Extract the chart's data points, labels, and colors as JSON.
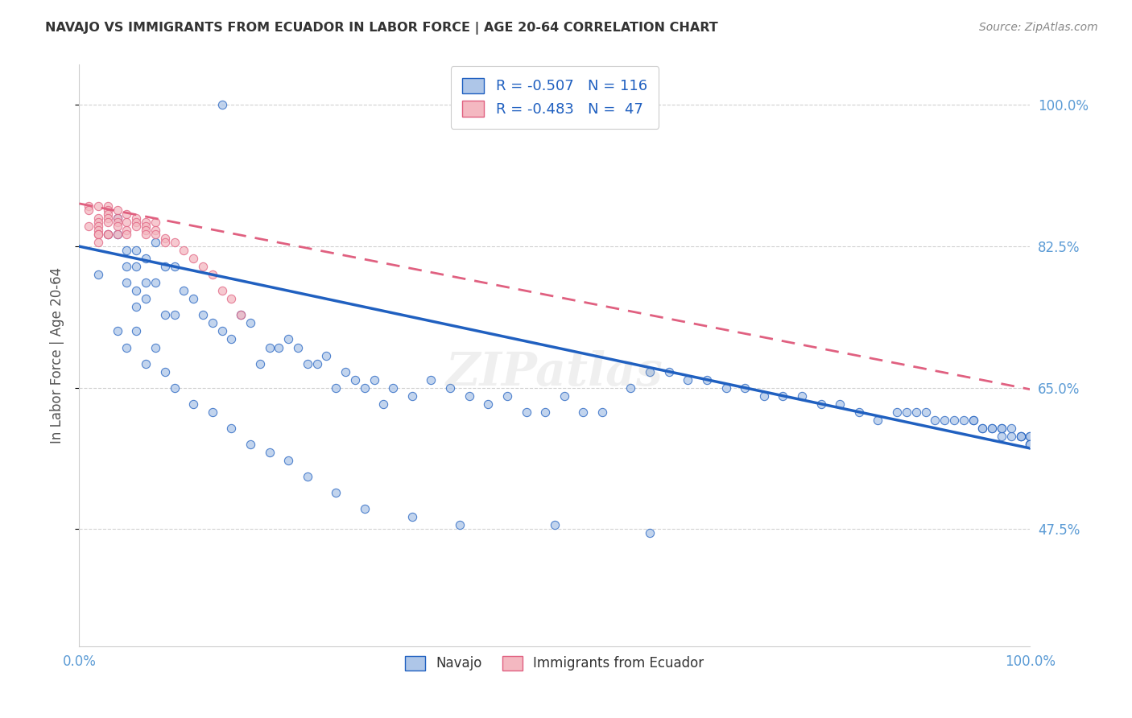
{
  "title": "NAVAJO VS IMMIGRANTS FROM ECUADOR IN LABOR FORCE | AGE 20-64 CORRELATION CHART",
  "source": "Source: ZipAtlas.com",
  "ylabel": "In Labor Force | Age 20-64",
  "xlim": [
    0.0,
    1.0
  ],
  "ylim": [
    0.33,
    1.05
  ],
  "xtick_labels": [
    "0.0%",
    "100.0%"
  ],
  "ytick_labels": [
    "100.0%",
    "82.5%",
    "65.0%",
    "47.5%"
  ],
  "ytick_values": [
    1.0,
    0.825,
    0.65,
    0.475
  ],
  "legend_entries": [
    {
      "label": "R = -0.507   N = 116",
      "color": "#aec6e8"
    },
    {
      "label": "R = -0.483   N =  47",
      "color": "#f4b8c1"
    }
  ],
  "navajo_scatter_color": "#aec6e8",
  "ecuador_scatter_color": "#f4b8c1",
  "navajo_line_color": "#2060c0",
  "ecuador_line_color": "#e06080",
  "background_color": "#ffffff",
  "grid_color": "#cccccc",
  "title_color": "#333333",
  "axis_label_color": "#555555",
  "tick_color": "#5b9bd5",
  "watermark": "ZIPatlas",
  "scatter_size": 55,
  "navajo_x": [
    0.02,
    0.15,
    0.03,
    0.04,
    0.04,
    0.05,
    0.05,
    0.05,
    0.06,
    0.06,
    0.06,
    0.06,
    0.07,
    0.07,
    0.07,
    0.08,
    0.08,
    0.09,
    0.09,
    0.1,
    0.1,
    0.11,
    0.12,
    0.13,
    0.14,
    0.15,
    0.16,
    0.17,
    0.18,
    0.19,
    0.2,
    0.21,
    0.22,
    0.23,
    0.24,
    0.25,
    0.26,
    0.27,
    0.28,
    0.29,
    0.3,
    0.31,
    0.32,
    0.33,
    0.35,
    0.37,
    0.39,
    0.41,
    0.43,
    0.45,
    0.47,
    0.49,
    0.51,
    0.53,
    0.55,
    0.58,
    0.6,
    0.62,
    0.64,
    0.66,
    0.68,
    0.7,
    0.72,
    0.74,
    0.76,
    0.78,
    0.8,
    0.82,
    0.84,
    0.86,
    0.87,
    0.88,
    0.89,
    0.9,
    0.91,
    0.92,
    0.93,
    0.94,
    0.94,
    0.95,
    0.95,
    0.96,
    0.96,
    0.97,
    0.97,
    0.97,
    0.98,
    0.98,
    0.99,
    0.99,
    0.99,
    1.0,
    1.0,
    1.0,
    1.0,
    1.0,
    0.04,
    0.05,
    0.06,
    0.07,
    0.08,
    0.09,
    0.1,
    0.12,
    0.14,
    0.16,
    0.18,
    0.2,
    0.22,
    0.24,
    0.27,
    0.3,
    0.35,
    0.4,
    0.5,
    0.6
  ],
  "navajo_y": [
    0.79,
    1.0,
    0.84,
    0.84,
    0.86,
    0.82,
    0.8,
    0.78,
    0.82,
    0.8,
    0.77,
    0.75,
    0.81,
    0.78,
    0.76,
    0.83,
    0.78,
    0.8,
    0.74,
    0.8,
    0.74,
    0.77,
    0.76,
    0.74,
    0.73,
    0.72,
    0.71,
    0.74,
    0.73,
    0.68,
    0.7,
    0.7,
    0.71,
    0.7,
    0.68,
    0.68,
    0.69,
    0.65,
    0.67,
    0.66,
    0.65,
    0.66,
    0.63,
    0.65,
    0.64,
    0.66,
    0.65,
    0.64,
    0.63,
    0.64,
    0.62,
    0.62,
    0.64,
    0.62,
    0.62,
    0.65,
    0.67,
    0.67,
    0.66,
    0.66,
    0.65,
    0.65,
    0.64,
    0.64,
    0.64,
    0.63,
    0.63,
    0.62,
    0.61,
    0.62,
    0.62,
    0.62,
    0.62,
    0.61,
    0.61,
    0.61,
    0.61,
    0.61,
    0.61,
    0.6,
    0.6,
    0.6,
    0.6,
    0.6,
    0.59,
    0.6,
    0.59,
    0.6,
    0.59,
    0.59,
    0.59,
    0.59,
    0.59,
    0.58,
    0.58,
    0.58,
    0.72,
    0.7,
    0.72,
    0.68,
    0.7,
    0.67,
    0.65,
    0.63,
    0.62,
    0.6,
    0.58,
    0.57,
    0.56,
    0.54,
    0.52,
    0.5,
    0.49,
    0.48,
    0.48,
    0.47
  ],
  "ecuador_x": [
    0.01,
    0.01,
    0.01,
    0.02,
    0.02,
    0.02,
    0.02,
    0.02,
    0.02,
    0.02,
    0.02,
    0.03,
    0.03,
    0.03,
    0.03,
    0.03,
    0.03,
    0.03,
    0.04,
    0.04,
    0.04,
    0.04,
    0.04,
    0.05,
    0.05,
    0.05,
    0.05,
    0.06,
    0.06,
    0.06,
    0.07,
    0.07,
    0.07,
    0.07,
    0.08,
    0.08,
    0.08,
    0.09,
    0.09,
    0.1,
    0.11,
    0.12,
    0.13,
    0.14,
    0.15,
    0.16,
    0.17
  ],
  "ecuador_y": [
    0.875,
    0.87,
    0.85,
    0.875,
    0.86,
    0.855,
    0.85,
    0.845,
    0.84,
    0.84,
    0.83,
    0.875,
    0.87,
    0.865,
    0.86,
    0.855,
    0.84,
    0.84,
    0.87,
    0.86,
    0.855,
    0.85,
    0.84,
    0.865,
    0.855,
    0.845,
    0.84,
    0.86,
    0.855,
    0.85,
    0.855,
    0.85,
    0.845,
    0.84,
    0.855,
    0.845,
    0.84,
    0.835,
    0.83,
    0.83,
    0.82,
    0.81,
    0.8,
    0.79,
    0.77,
    0.76,
    0.74
  ],
  "navajo_trend_x": [
    0.0,
    1.0
  ],
  "navajo_trend_y": [
    0.825,
    0.575
  ],
  "ecuador_trend_x": [
    0.0,
    1.0
  ],
  "ecuador_trend_y": [
    0.878,
    0.648
  ],
  "bottom_legend": [
    "Navajo",
    "Immigrants from Ecuador"
  ]
}
